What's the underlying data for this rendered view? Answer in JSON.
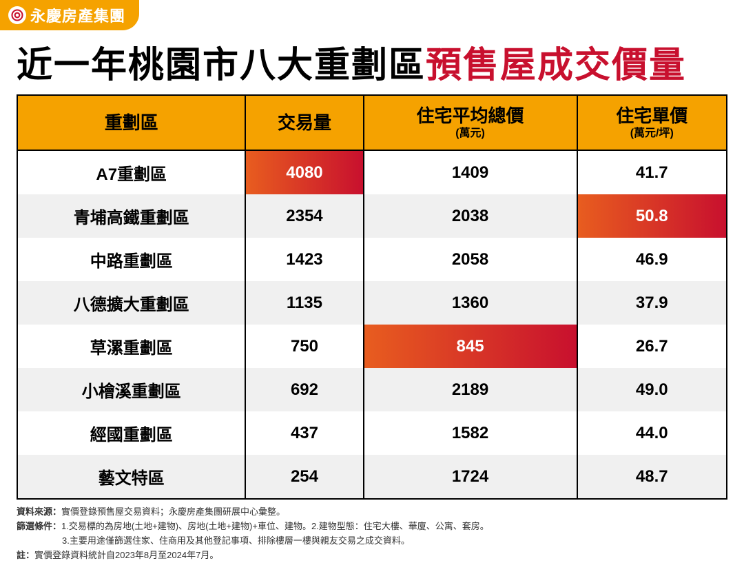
{
  "brand": {
    "text": "永慶房產集團",
    "badge_bg": "#f5a200",
    "icon_stroke": "#c8102e"
  },
  "title": {
    "pre": "近一年",
    "mid": "桃園市八大重劃區",
    "accent": "預售屋成交價量"
  },
  "table": {
    "header_bg": "#f5a200",
    "highlight_gradient_from": "#e85d1f",
    "highlight_gradient_to": "#c8102e",
    "columns": [
      {
        "label": "重劃區",
        "sub": ""
      },
      {
        "label": "交易量",
        "sub": ""
      },
      {
        "label": "住宅平均總價",
        "sub": "(萬元)"
      },
      {
        "label": "住宅單價",
        "sub": "(萬元/坪)"
      }
    ],
    "rows": [
      {
        "name": "A7重劃區",
        "vol": "4080",
        "total": "1409",
        "unit": "41.7",
        "hl_col": 1
      },
      {
        "name": "青埔高鐵重劃區",
        "vol": "2354",
        "total": "2038",
        "unit": "50.8",
        "hl_col": 3
      },
      {
        "name": "中路重劃區",
        "vol": "1423",
        "total": "2058",
        "unit": "46.9",
        "hl_col": -1
      },
      {
        "name": "八德擴大重劃區",
        "vol": "1135",
        "total": "1360",
        "unit": "37.9",
        "hl_col": -1
      },
      {
        "name": "草漯重劃區",
        "vol": "750",
        "total": "845",
        "unit": "26.7",
        "hl_col": 2
      },
      {
        "name": "小檜溪重劃區",
        "vol": "692",
        "total": "2189",
        "unit": "49.0",
        "hl_col": -1
      },
      {
        "name": "經國重劃區",
        "vol": "437",
        "total": "1582",
        "unit": "44.0",
        "hl_col": -1
      },
      {
        "name": "藝文特區",
        "vol": "254",
        "total": "1724",
        "unit": "48.7",
        "hl_col": -1
      }
    ]
  },
  "footnotes": {
    "source_label": "資料來源：",
    "source_text": "實價登錄預售屋交易資料；永慶房產集團研展中心彙整。",
    "filter_label": "篩選條件：",
    "filter_line1": "1.交易標的為房地(土地+建物)、房地(土地+建物)+車位、建物。2.建物型態：住宅大樓、華廈、公寓、套房。",
    "filter_line2": "3.主要用途僅篩選住家、住商用及其他登記事項、排除樓層一樓與親友交易之成交資料。",
    "note_label": "註：",
    "note_text": "實價登錄資料統計自2023年8月至2024年7月。"
  }
}
